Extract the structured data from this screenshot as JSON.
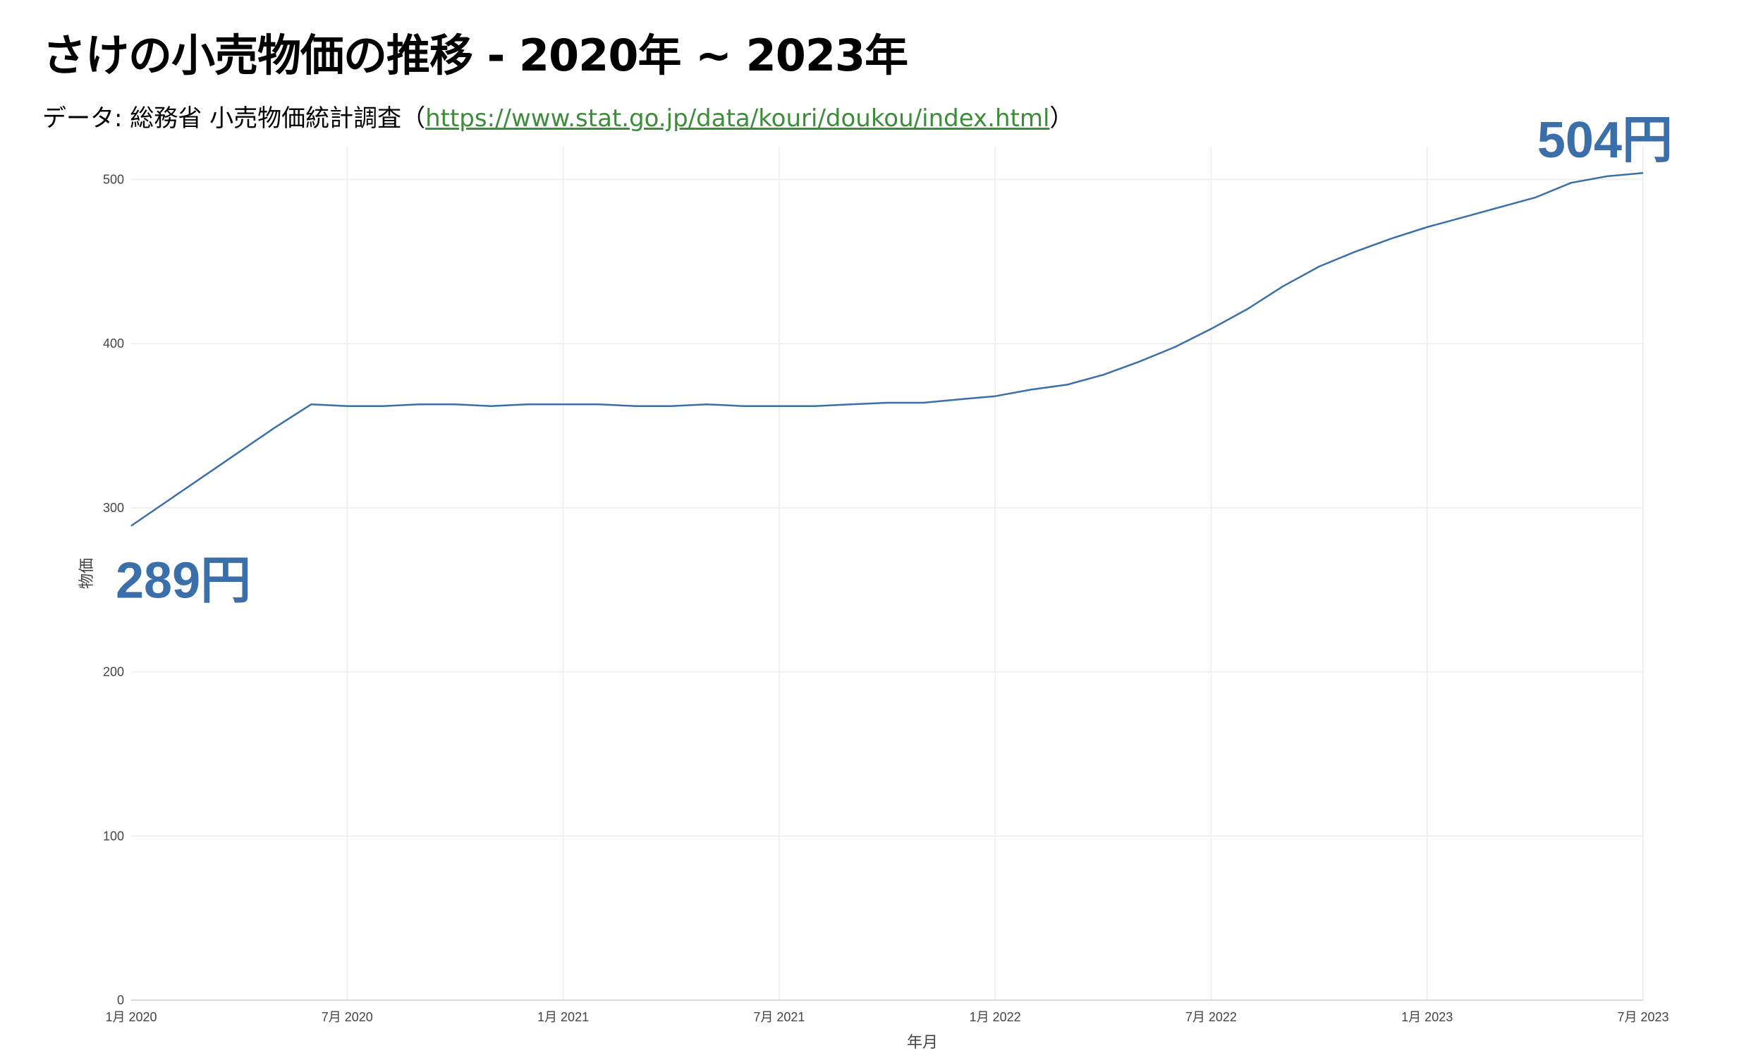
{
  "header": {
    "title": "さけの小売物価の推移 - 2020年 ~ 2023年",
    "subtitle_prefix": "データ: 総務省 小売物価統計調査（",
    "subtitle_link": "https://www.stat.go.jp/data/kouri/doukou/index.html",
    "subtitle_suffix": "）"
  },
  "chart_data": {
    "type": "line",
    "xlabel": "年月",
    "ylabel": "物価",
    "ylim": [
      0,
      520
    ],
    "y_ticks": [
      0,
      100,
      200,
      300,
      400,
      500
    ],
    "x_ticks": [
      {
        "x": "2020-01",
        "label": "1月 2020"
      },
      {
        "x": "2020-07",
        "label": "7月 2020"
      },
      {
        "x": "2021-01",
        "label": "1月 2021"
      },
      {
        "x": "2021-07",
        "label": "7月 2021"
      },
      {
        "x": "2022-01",
        "label": "1月 2022"
      },
      {
        "x": "2022-07",
        "label": "7月 2022"
      },
      {
        "x": "2023-01",
        "label": "1月 2023"
      },
      {
        "x": "2023-07",
        "label": "7月 2023"
      }
    ],
    "grid": true,
    "color": "#3a6fa9",
    "start_label": "289円",
    "end_label": "504円",
    "x": [
      "2020-01",
      "2020-02",
      "2020-03",
      "2020-04",
      "2020-05",
      "2020-06",
      "2020-07",
      "2020-08",
      "2020-09",
      "2020-10",
      "2020-11",
      "2020-12",
      "2021-01",
      "2021-02",
      "2021-03",
      "2021-04",
      "2021-05",
      "2021-06",
      "2021-07",
      "2021-08",
      "2021-09",
      "2021-10",
      "2021-11",
      "2021-12",
      "2022-01",
      "2022-02",
      "2022-03",
      "2022-04",
      "2022-05",
      "2022-06",
      "2022-07",
      "2022-08",
      "2022-09",
      "2022-10",
      "2022-11",
      "2022-12",
      "2023-01",
      "2023-02",
      "2023-03",
      "2023-04",
      "2023-05",
      "2023-06",
      "2023-07"
    ],
    "values": [
      289,
      304,
      319,
      334,
      349,
      363,
      362,
      362,
      363,
      363,
      362,
      363,
      363,
      363,
      362,
      362,
      363,
      362,
      362,
      362,
      363,
      364,
      364,
      366,
      368,
      372,
      375,
      381,
      389,
      398,
      409,
      421,
      435,
      447,
      456,
      464,
      471,
      477,
      483,
      489,
      498,
      502,
      504
    ]
  }
}
